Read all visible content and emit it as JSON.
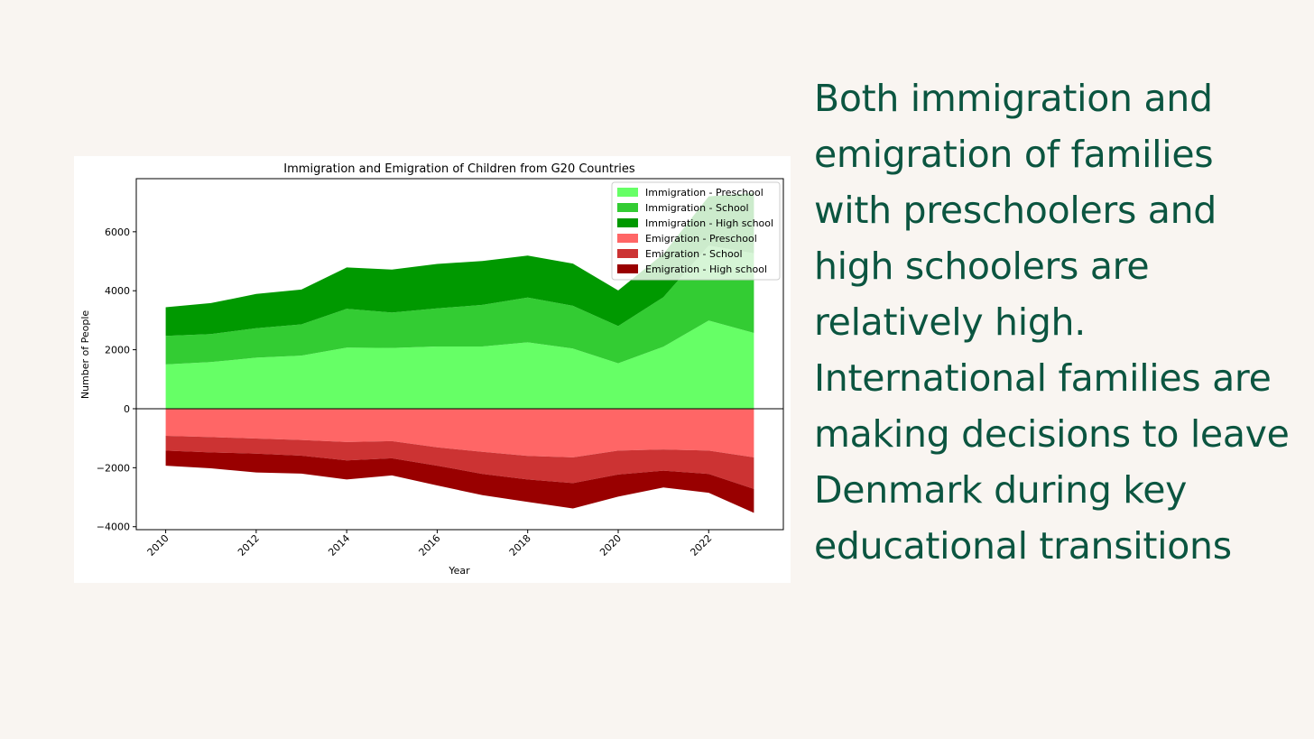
{
  "slide": {
    "text": "Both immigration and emigration of families with preschoolers and high schoolers are relatively high. International families are making decisions to leave Denmark during key educational transitions"
  },
  "chart_data": {
    "type": "area",
    "title": "Immigration and Emigration of Children from G20 Countries",
    "xlabel": "Year",
    "ylabel": "Number of People",
    "x": [
      2010,
      2011,
      2012,
      2013,
      2014,
      2015,
      2016,
      2017,
      2018,
      2019,
      2020,
      2021,
      2022,
      2023
    ],
    "xticks": [
      2010,
      2012,
      2014,
      2016,
      2018,
      2020,
      2022
    ],
    "yticks": [
      -4000,
      -2000,
      0,
      2000,
      4000,
      6000
    ],
    "xlim": [
      2009.35,
      2023.65
    ],
    "ylim": [
      -4100,
      7800
    ],
    "stacked": true,
    "legend_location": "top-right",
    "series": [
      {
        "name": "Immigration - Preschool",
        "color": "#66ff66",
        "values": [
          1500,
          1580,
          1730,
          1800,
          2070,
          2060,
          2110,
          2110,
          2250,
          2040,
          1540,
          2100,
          2990,
          2570
        ]
      },
      {
        "name": "Immigration - School",
        "color": "#33cc33",
        "values": [
          970,
          950,
          1000,
          1060,
          1320,
          1200,
          1290,
          1410,
          1520,
          1450,
          1260,
          1680,
          2540,
          2700
        ]
      },
      {
        "name": "Immigration - High school",
        "color": "#009900",
        "values": [
          970,
          1050,
          1160,
          1180,
          1400,
          1460,
          1510,
          1490,
          1420,
          1430,
          1210,
          1470,
          1670,
          2050
        ]
      },
      {
        "name": "Emigration - Preschool",
        "color": "#ff6666",
        "values": [
          -920,
          -960,
          -1010,
          -1060,
          -1130,
          -1100,
          -1310,
          -1460,
          -1600,
          -1650,
          -1420,
          -1380,
          -1420,
          -1650
        ]
      },
      {
        "name": "Emigration - School",
        "color": "#cc3333",
        "values": [
          -500,
          -520,
          -510,
          -530,
          -620,
          -580,
          -620,
          -750,
          -800,
          -870,
          -810,
          -720,
          -790,
          -1070
        ]
      },
      {
        "name": "Emigration - High school",
        "color": "#990000",
        "values": [
          -510,
          -540,
          -640,
          -610,
          -650,
          -580,
          -670,
          -720,
          -760,
          -860,
          -750,
          -570,
          -640,
          -810
        ]
      }
    ]
  }
}
